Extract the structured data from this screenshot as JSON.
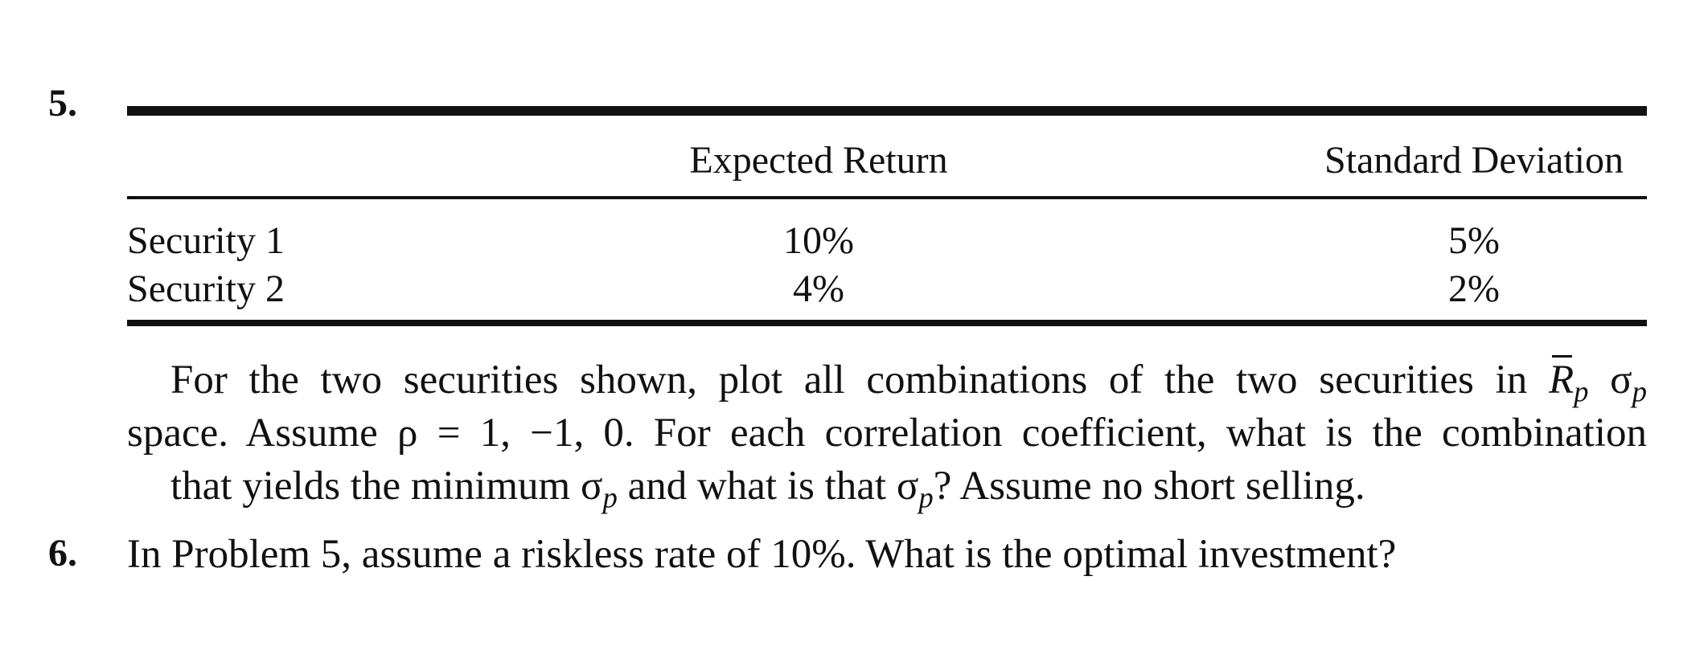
{
  "problem5": {
    "number": "5.",
    "table": {
      "headers": [
        "",
        "Expected Return",
        "Standard Deviation"
      ],
      "rows": [
        {
          "label": "Security 1",
          "expected_return": "10%",
          "standard_deviation": "5%"
        },
        {
          "label": "Security 2",
          "expected_return": "4%",
          "standard_deviation": "2%"
        }
      ]
    },
    "text": {
      "line1_a": "For the two securities shown, plot all combinations of the two securities in",
      "rbar": "R",
      "sub_p": "p",
      "sigma": "σ",
      "line2": "space. Assume ρ = 1, −1, 0. For each correlation coefficient, what is the combination",
      "line3_a": "that yields the minimum",
      "line3_b": "and what is that",
      "line3_c": "? Assume no short selling."
    }
  },
  "problem6": {
    "number": "6.",
    "text": "In Problem 5, assume a riskless rate of 10%. What is the optimal investment?"
  }
}
